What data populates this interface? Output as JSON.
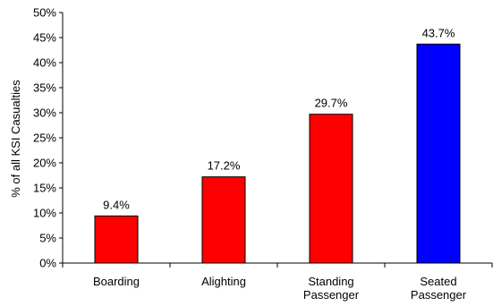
{
  "chart_data": {
    "type": "bar",
    "title": "",
    "xlabel": "",
    "ylabel": "% of all KSI Casualties",
    "ylim": [
      0,
      50
    ],
    "y_ticks": [
      "0%",
      "5%",
      "10%",
      "15%",
      "20%",
      "25%",
      "30%",
      "35%",
      "40%",
      "45%",
      "50%"
    ],
    "categories": [
      [
        "Boarding"
      ],
      [
        "Alighting"
      ],
      [
        "Standing",
        "Passenger"
      ],
      [
        "Seated",
        "Passenger"
      ]
    ],
    "values": [
      9.4,
      17.2,
      29.7,
      43.7
    ],
    "data_labels": [
      "9.4%",
      "17.2%",
      "29.7%",
      "43.7%"
    ],
    "colors": [
      "#ff0000",
      "#ff0000",
      "#ff0000",
      "#0000ff"
    ],
    "grid": false,
    "legend": "none"
  }
}
